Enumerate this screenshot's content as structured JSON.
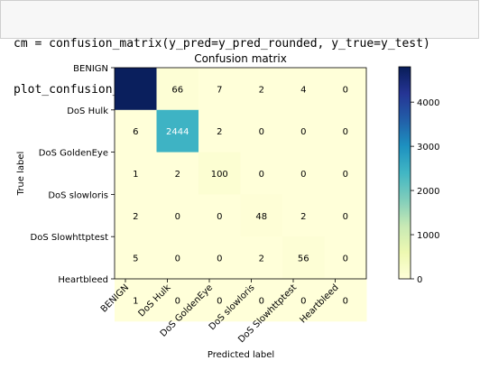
{
  "notebook": {
    "code_lines": [
      "cm = confusion_matrix(y_pred=y_pred_rounded, y_true=y_test)",
      "plot_confusion_matrix(cm,classes=class_names)"
    ]
  },
  "chart_data": {
    "type": "heatmap",
    "title": "Confusion matrix",
    "xlabel": "Predicted label",
    "ylabel": "True label",
    "classes": [
      "BENIGN",
      "DoS Hulk",
      "DoS GoldenEye",
      "DoS slowloris",
      "DoS Slowhttptest",
      "Heartbleed"
    ],
    "matrix": [
      [
        4750,
        66,
        7,
        2,
        4,
        0
      ],
      [
        6,
        2444,
        2,
        0,
        0,
        0
      ],
      [
        1,
        2,
        100,
        0,
        0,
        0
      ],
      [
        2,
        0,
        0,
        48,
        2,
        0
      ],
      [
        5,
        0,
        0,
        2,
        56,
        0
      ],
      [
        1,
        0,
        0,
        0,
        0,
        0
      ]
    ],
    "cell_labels": [
      [
        "",
        "66",
        "7",
        "2",
        "4",
        "0"
      ],
      [
        "6",
        "2444",
        "2",
        "0",
        "0",
        "0"
      ],
      [
        "1",
        "2",
        "100",
        "0",
        "0",
        "0"
      ],
      [
        "2",
        "0",
        "0",
        "48",
        "2",
        "0"
      ],
      [
        "5",
        "0",
        "0",
        "2",
        "56",
        "0"
      ],
      [
        "1",
        "0",
        "0",
        "0",
        "0",
        "0"
      ]
    ],
    "colormap": "YlGnBu",
    "vmin": 0,
    "vmax": 4800,
    "colorbar_ticks": [
      0,
      1000,
      2000,
      3000,
      4000
    ],
    "colorbar_tick_labels": [
      "0",
      "1000",
      "2000",
      "3000",
      "4000"
    ],
    "text_color_dark": "#000000",
    "text_color_light": "#ffffff"
  }
}
